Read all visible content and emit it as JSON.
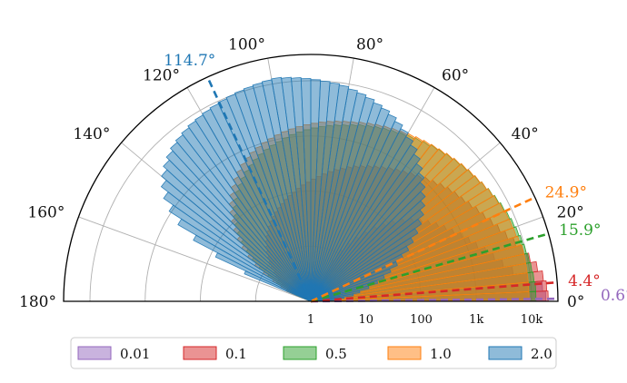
{
  "chart_data": {
    "type": "polar-histogram",
    "angle_ticks": [
      "0°",
      "20°",
      "40°",
      "60°",
      "80°",
      "100°",
      "120°",
      "140°",
      "160°",
      "180°"
    ],
    "angle_tick_values": [
      0,
      20,
      40,
      60,
      80,
      100,
      120,
      140,
      160,
      180
    ],
    "radial_scale": "log",
    "radial_ticks": [
      "1",
      "10",
      "100",
      "1k",
      "10k"
    ],
    "radial_tick_values": [
      1,
      10,
      100,
      1000,
      10000
    ],
    "radial_range": [
      1,
      30000
    ],
    "grid": true,
    "legend_position": "bottom",
    "bin_width_deg": 2.5,
    "series": [
      {
        "name": "0.01",
        "color": "#9467bd",
        "values": [
          18000,
          16000,
          9000,
          5000,
          3500,
          2600,
          2000,
          1500,
          1200,
          950,
          750,
          600,
          480,
          380,
          300,
          230,
          170,
          120,
          85,
          60,
          40,
          27,
          18,
          12,
          7
        ],
        "mean_angle": 0.6,
        "mean_label": "0.6°"
      },
      {
        "name": "0.1",
        "color": "#d62728",
        "values": [
          20000,
          19000,
          17000,
          14000,
          11000,
          9000,
          7000,
          5500,
          4500,
          3800,
          3200,
          2800,
          2400,
          2100,
          1900,
          1700,
          1500,
          1300,
          1150,
          1000,
          900,
          800,
          720,
          650,
          580,
          520,
          470,
          420,
          380,
          340,
          300,
          270,
          240,
          210,
          185,
          165,
          145,
          130,
          115,
          100,
          90,
          80,
          70,
          62,
          55,
          48,
          42,
          36,
          31,
          27,
          23,
          19,
          16,
          13,
          11,
          9,
          7,
          6,
          5,
          4,
          3
        ],
        "mean_angle": 4.4,
        "mean_label": "4.4°"
      },
      {
        "name": "0.5",
        "color": "#2ca02c",
        "values": [
          12000,
          12000,
          11500,
          11000,
          10500,
          10000,
          9500,
          9000,
          8500,
          8000,
          7500,
          7000,
          6500,
          6000,
          5500,
          5200,
          4900,
          4600,
          4300,
          4000,
          3800,
          3500,
          3300,
          3100,
          2900,
          2700,
          2550,
          2400,
          2250,
          2100,
          1950,
          1800,
          1700,
          1600,
          1500,
          1400,
          1300,
          1200,
          1100,
          1000,
          900,
          820,
          740,
          660,
          580,
          500,
          430,
          360,
          300,
          250,
          200,
          160,
          120,
          90,
          65,
          45,
          30,
          20,
          13,
          8,
          5,
          3,
          2
        ],
        "mean_angle": 15.9,
        "mean_label": "15.9°"
      },
      {
        "name": "1.0",
        "color": "#ff7f0e",
        "values": [
          9000,
          9000,
          9000,
          9000,
          9000,
          9000,
          8500,
          8000,
          7800,
          7600,
          7200,
          6800,
          6400,
          6000,
          5600,
          5300,
          5000,
          4700,
          4400,
          4100,
          3900,
          3700,
          3500,
          3300,
          3100,
          2950,
          2800,
          2650,
          2500,
          2350,
          2200,
          2100,
          2000,
          1900,
          1800,
          1700,
          1600,
          1500,
          1400,
          1300,
          1200,
          1100,
          1000,
          900,
          800,
          700,
          600,
          500,
          410,
          330,
          260,
          200,
          150,
          110,
          80,
          55,
          38,
          25,
          16,
          10,
          6,
          4,
          3
        ],
        "mean_angle": 24.9,
        "mean_label": "24.9°"
      },
      {
        "name": "2.0",
        "color": "#1f77b4",
        "values": [
          2,
          3,
          4,
          6,
          8,
          12,
          18,
          25,
          35,
          50,
          70,
          100,
          140,
          200,
          280,
          380,
          500,
          650,
          850,
          1100,
          1400,
          1800,
          2300,
          2800,
          3400,
          4000,
          4700,
          5400,
          6000,
          6800,
          7500,
          8200,
          9000,
          9500,
          10000,
          10500,
          11000,
          11500,
          12000,
          12500,
          12000,
          11500,
          11000,
          10500,
          10000,
          9500,
          9000,
          8500,
          8000,
          7600,
          7000,
          6400,
          5800,
          5000,
          4200,
          3400,
          2600,
          1800,
          1100,
          600,
          250,
          80,
          20
        ],
        "mean_angle": 114.7,
        "mean_label": "114.7°"
      }
    ]
  },
  "legend": {
    "entries": [
      "0.01",
      "0.1",
      "0.5",
      "1.0",
      "2.0"
    ]
  }
}
